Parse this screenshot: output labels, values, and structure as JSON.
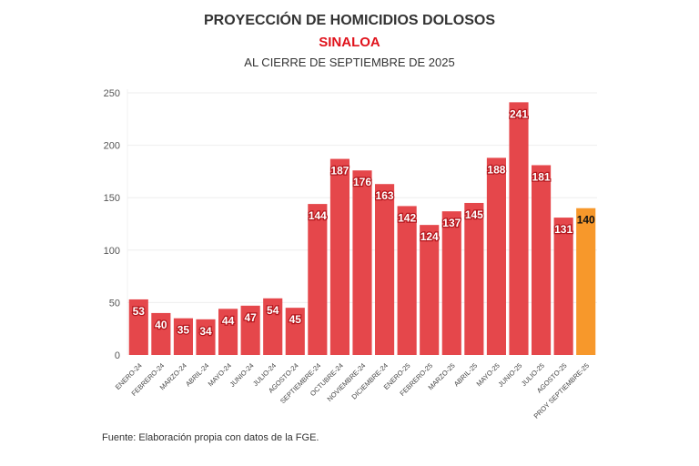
{
  "chart_data": {
    "type": "bar",
    "title": "PROYECCIÓN DE HOMICIDIOS DOLOSOS",
    "subtitle": "SINALOA",
    "subtitle2": "AL CIERRE DE SEPTIEMBRE DE 2025",
    "source": "Fuente: Elaboración propia con datos de la FGE.",
    "xlabel": "",
    "ylabel": "",
    "ylim": [
      0,
      250
    ],
    "yticks": [
      0,
      50,
      100,
      150,
      200,
      250
    ],
    "grid": true,
    "categories": [
      "ENERO-24",
      "FEBRERO-24",
      "MARZO-24",
      "ABRIL-24",
      "MAYO-24",
      "JUNIO-24",
      "JULIO-24",
      "AGOSTO-24",
      "SEPTIEMBRE-24",
      "OCTUBRE-24",
      "NOVIEMBRE-24",
      "DICIEMBRE-24",
      "ENERO-25",
      "FEBRERO-25",
      "MARZO-25",
      "ABRIL-25",
      "MAYO-25",
      "JUNIO-25",
      "JULIO-25",
      "AGOSTO-25",
      "PROY SEPTIEMBRE-25"
    ],
    "values": [
      53,
      40,
      35,
      34,
      44,
      47,
      54,
      45,
      144,
      187,
      176,
      163,
      142,
      124,
      137,
      145,
      188,
      241,
      181,
      131,
      140
    ],
    "colors": {
      "actual": "#e5474b",
      "projection": "#f7982b"
    }
  }
}
